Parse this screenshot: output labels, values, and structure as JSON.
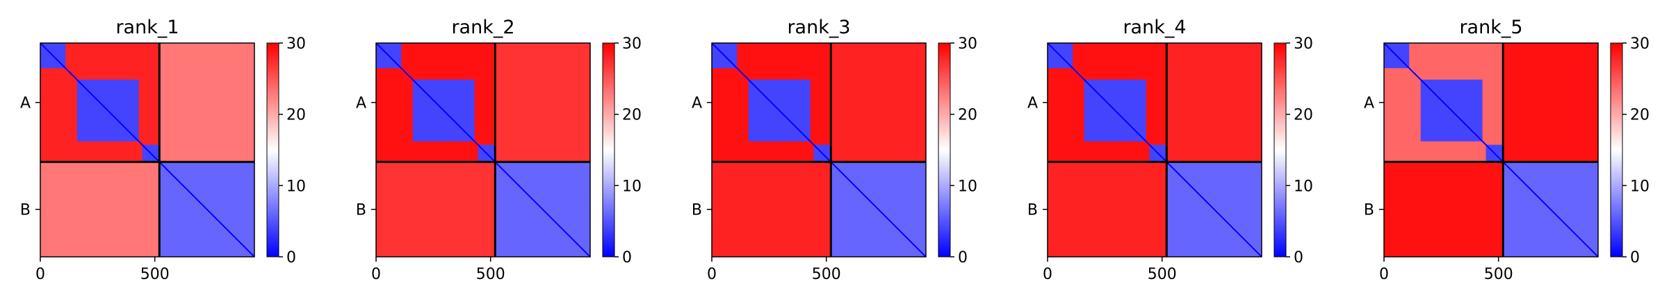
{
  "chart_data": [
    {
      "type": "heatmap",
      "title": "rank_1",
      "x_ticks": [
        0,
        500
      ],
      "y_tick_labels": [
        "A",
        "B"
      ],
      "chain_lengths": {
        "A": 520,
        "B": 415
      },
      "total_length": 935,
      "colorbar": {
        "min": 0,
        "max": 30,
        "ticks": [
          0,
          10,
          20,
          30
        ],
        "colors": [
          "#0000ff",
          "#ffffff",
          "#ff0000"
        ]
      },
      "inter_chain_error": 23,
      "intra_chain_error": {
        "A": 28,
        "B": 6
      },
      "domains_A": [
        [
          0,
          110
        ],
        [
          160,
          430
        ],
        [
          445,
          520
        ]
      ],
      "domains_B": [
        [
          520,
          935
        ]
      ],
      "domain_error": 4
    },
    {
      "type": "heatmap",
      "title": "rank_2",
      "x_ticks": [
        0,
        500
      ],
      "y_tick_labels": [
        "A",
        "B"
      ],
      "chain_lengths": {
        "A": 520,
        "B": 415
      },
      "total_length": 935,
      "colorbar": {
        "min": 0,
        "max": 30,
        "ticks": [
          0,
          10,
          20,
          30
        ],
        "colors": [
          "#0000ff",
          "#ffffff",
          "#ff0000"
        ]
      },
      "inter_chain_error": 27,
      "intra_chain_error": {
        "A": 29,
        "B": 6
      },
      "domains_A": [
        [
          0,
          110
        ],
        [
          160,
          430
        ],
        [
          445,
          520
        ]
      ],
      "domains_B": [
        [
          520,
          935
        ]
      ],
      "domain_error": 4
    },
    {
      "type": "heatmap",
      "title": "rank_3",
      "x_ticks": [
        0,
        500
      ],
      "y_tick_labels": [
        "A",
        "B"
      ],
      "chain_lengths": {
        "A": 520,
        "B": 415
      },
      "total_length": 935,
      "colorbar": {
        "min": 0,
        "max": 30,
        "ticks": [
          0,
          10,
          20,
          30
        ],
        "colors": [
          "#0000ff",
          "#ffffff",
          "#ff0000"
        ]
      },
      "inter_chain_error": 28,
      "intra_chain_error": {
        "A": 29,
        "B": 6
      },
      "domains_A": [
        [
          0,
          110
        ],
        [
          160,
          430
        ],
        [
          445,
          520
        ]
      ],
      "domains_B": [
        [
          520,
          935
        ]
      ],
      "domain_error": 4
    },
    {
      "type": "heatmap",
      "title": "rank_4",
      "x_ticks": [
        0,
        500
      ],
      "y_tick_labels": [
        "A",
        "B"
      ],
      "chain_lengths": {
        "A": 520,
        "B": 415
      },
      "total_length": 935,
      "colorbar": {
        "min": 0,
        "max": 30,
        "ticks": [
          0,
          10,
          20,
          30
        ],
        "colors": [
          "#0000ff",
          "#ffffff",
          "#ff0000"
        ]
      },
      "inter_chain_error": 28,
      "intra_chain_error": {
        "A": 29,
        "B": 6
      },
      "domains_A": [
        [
          0,
          110
        ],
        [
          160,
          430
        ],
        [
          445,
          520
        ]
      ],
      "domains_B": [
        [
          520,
          935
        ]
      ],
      "domain_error": 4
    },
    {
      "type": "heatmap",
      "title": "rank_5",
      "x_ticks": [
        0,
        500
      ],
      "y_tick_labels": [
        "A",
        "B"
      ],
      "chain_lengths": {
        "A": 520,
        "B": 415
      },
      "total_length": 935,
      "colorbar": {
        "min": 0,
        "max": 30,
        "ticks": [
          0,
          10,
          20,
          30
        ],
        "colors": [
          "#0000ff",
          "#ffffff",
          "#ff0000"
        ]
      },
      "inter_chain_error": 29,
      "intra_chain_error": {
        "A": 24,
        "B": 6
      },
      "domains_A": [
        [
          0,
          110
        ],
        [
          160,
          430
        ],
        [
          445,
          520
        ]
      ],
      "domains_B": [
        [
          520,
          935
        ]
      ],
      "domain_error": 4
    }
  ]
}
